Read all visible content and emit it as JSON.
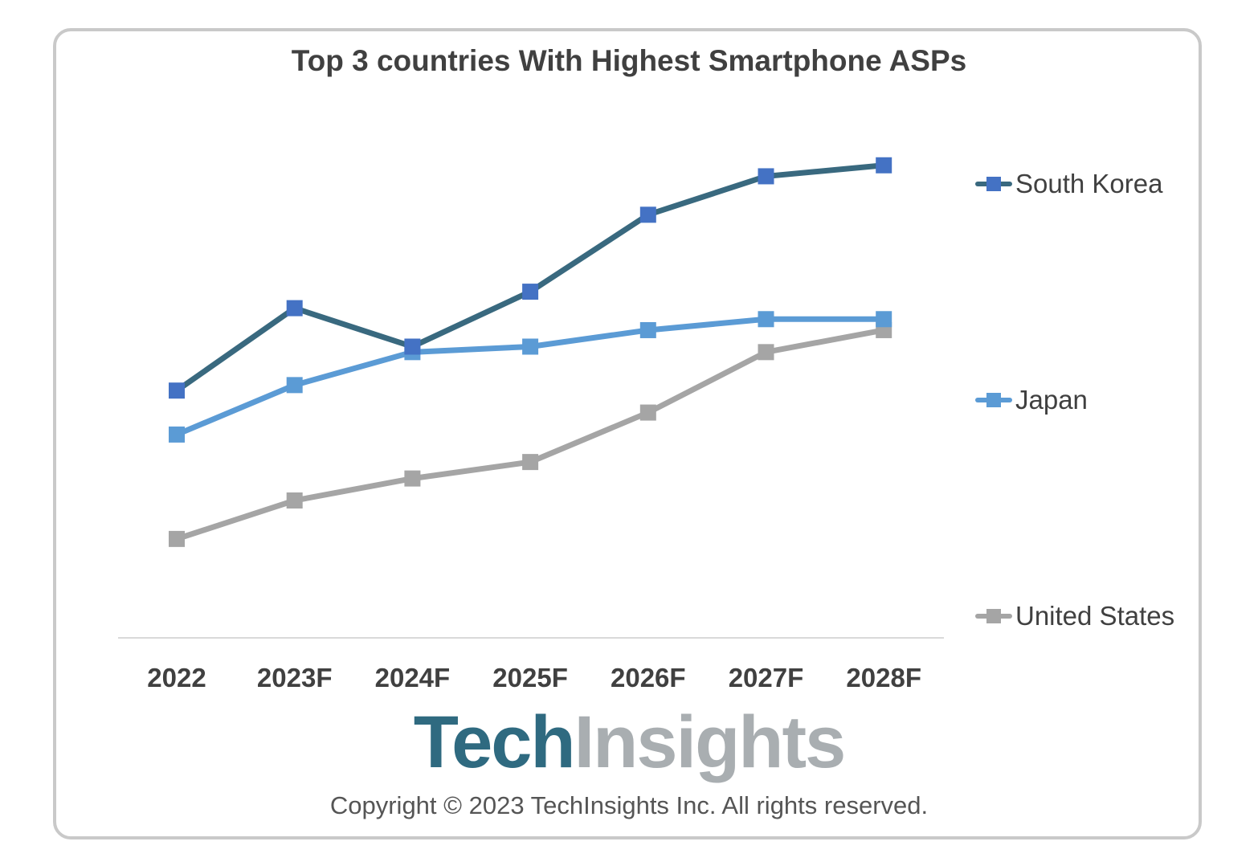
{
  "chart_data": {
    "type": "line",
    "title": "Top 3 countries With Highest Smartphone ASPs",
    "categories": [
      "2022",
      "2023F",
      "2024F",
      "2025F",
      "2026F",
      "2027F",
      "2028F"
    ],
    "xlabel": "",
    "ylabel": "",
    "ylim": [
      0,
      1
    ],
    "grid": false,
    "legend_position": "right",
    "y_axis_labels_shown": false,
    "series": [
      {
        "name": "South Korea",
        "values": [
          0.45,
          0.6,
          0.53,
          0.63,
          0.77,
          0.84,
          0.86
        ],
        "color": "#39697f",
        "marker_color": "#4472c4"
      },
      {
        "name": "Japan",
        "values": [
          0.37,
          0.46,
          0.52,
          0.53,
          0.56,
          0.58,
          0.58
        ],
        "color": "#5b9bd5",
        "marker_color": "#5b9bd5"
      },
      {
        "name": "United States",
        "values": [
          0.18,
          0.25,
          0.29,
          0.32,
          0.41,
          0.52,
          0.56
        ],
        "color": "#a5a5a5",
        "marker_color": "#a5a5a5"
      }
    ]
  },
  "branding": {
    "logo_part1": "Tech",
    "logo_part2": "Insights",
    "logo_color1": "#2f6a80",
    "logo_color2": "#a9aeb1",
    "copyright": "Copyright © 2023 TechInsights Inc.  All rights reserved."
  }
}
